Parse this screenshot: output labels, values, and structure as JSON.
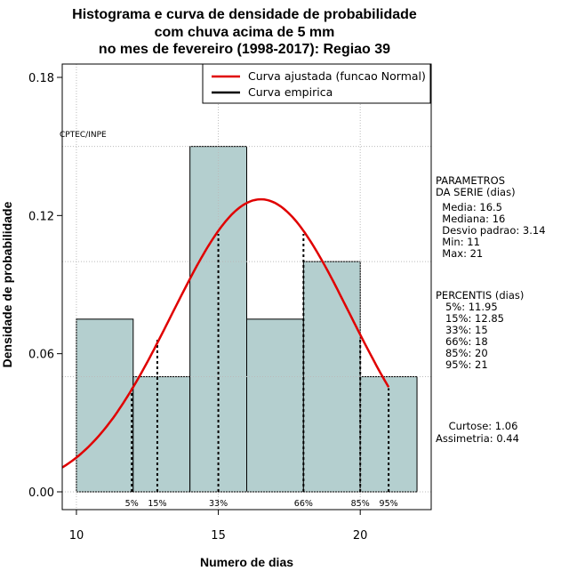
{
  "title_lines": [
    "Histograma e curva de densidade de probabilidade",
    "com chuva acima de 5 mm",
    "no mes de fevereiro (1998-2017): Regiao 39"
  ],
  "watermark": "CPTEC/INPE",
  "colors": {
    "bars": "#b4cfcf",
    "normal_curve": "#e00000",
    "grid": "#bbbbbb"
  },
  "chart_data": {
    "type": "bar",
    "title": "Histograma e curva de densidade de probabilidade com chuva acima de 5 mm no mes de fevereiro (1998-2017): Regiao 39",
    "xlabel": "Numero de dias",
    "ylabel": "Densidade de probabilidade",
    "xlim": [
      9.5,
      22.5
    ],
    "ylim": [
      0,
      0.18
    ],
    "x_ticks": [
      10,
      15,
      20
    ],
    "y_ticks": [
      0.0,
      0.06,
      0.12,
      0.18
    ],
    "y_tick_labels": [
      "0.00",
      "0.06",
      "0.12",
      "0.18"
    ],
    "grid": true,
    "bins": [
      {
        "x0": 10,
        "x1": 12,
        "density": 0.075
      },
      {
        "x0": 12,
        "x1": 14,
        "density": 0.05
      },
      {
        "x0": 14,
        "x1": 16,
        "density": 0.15
      },
      {
        "x0": 16,
        "x1": 18,
        "density": 0.075
      },
      {
        "x0": 18,
        "x1": 20,
        "density": 0.1
      },
      {
        "x0": 20,
        "x1": 22,
        "density": 0.05
      }
    ],
    "normal_curve": {
      "name": "Curva ajustada (funcao Normal)",
      "mean": 16.5,
      "sd": 3.14,
      "x_from": 9.5,
      "x_to": 21
    },
    "empirical_curve": {
      "name": "Curva empirica"
    },
    "percentile_lines": [
      {
        "label": "5%",
        "x": 11.95,
        "y": 0.045
      },
      {
        "label": "15%",
        "x": 12.85,
        "y": 0.066
      },
      {
        "label": "33%",
        "x": 15,
        "y": 0.112
      },
      {
        "label": "66%",
        "x": 18,
        "y": 0.112
      },
      {
        "label": "85%",
        "x": 20,
        "y": 0.067
      },
      {
        "label": "95%",
        "x": 21,
        "y": 0.045
      }
    ],
    "legend_position": "top-right"
  },
  "side_panel": {
    "params_header": "PARAMETROS\nDA SERIE (dias)",
    "params": [
      "  Media: 16.5",
      "  Mediana: 16",
      "  Desvio padrao: 3.14",
      "  Min: 11",
      "  Max: 21"
    ],
    "percentis_header": "PERCENTIS (dias)",
    "percentis": [
      "   5%: 11.95",
      "   15%: 12.85",
      "   33%: 15",
      "   66%: 18",
      "   85%: 20",
      "   95%: 21"
    ],
    "curtose": "    Curtose: 1.06",
    "assimetria": "Assimetria: 0.44"
  }
}
